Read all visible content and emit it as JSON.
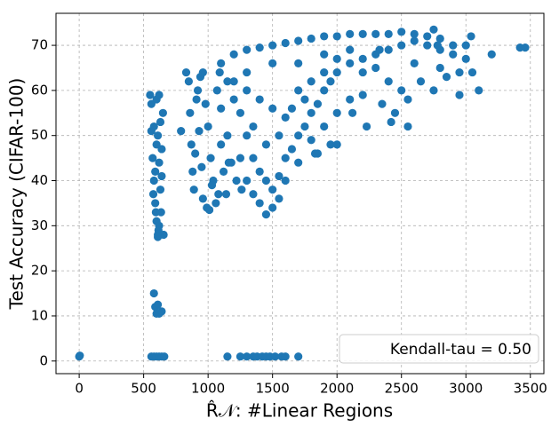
{
  "chart_data": {
    "type": "scatter",
    "xlabel": "R̂𝒩: #Linear Regions",
    "ylabel": "Test Accuracy (CIFAR-100)",
    "annotation": "Kendall-tau = 0.50",
    "legend_loc": "lower right",
    "color": "#1f77b4",
    "grid": true,
    "xlim": [
      -180,
      3605
    ],
    "ylim": [
      -2.8,
      77.1
    ],
    "xticks": [
      0,
      500,
      1000,
      1500,
      2000,
      2500,
      3000,
      3500
    ],
    "yticks": [
      0,
      10,
      20,
      30,
      40,
      50,
      60,
      70
    ],
    "x": [
      0,
      5,
      550,
      560,
      570,
      580,
      590,
      600,
      610,
      620,
      630,
      640,
      650,
      560,
      600,
      620,
      580,
      600,
      620,
      640,
      575,
      595,
      615,
      635,
      590,
      610,
      630,
      655,
      610,
      580,
      590,
      600,
      620,
      640,
      610,
      560,
      580,
      600,
      620,
      640,
      660,
      790,
      830,
      850,
      860,
      870,
      880,
      890,
      900,
      910,
      920,
      940,
      960,
      980,
      1000,
      1020,
      1040,
      1060,
      1080,
      960,
      990,
      1010,
      1030,
      950,
      930,
      1070,
      1090,
      1100,
      1120,
      1140,
      1160,
      1100,
      1150,
      1200,
      1250,
      1300,
      1350,
      1400,
      1450,
      1500,
      1550,
      1600,
      1650,
      1700,
      1750,
      1800,
      1850,
      1900,
      1950,
      2000,
      2100,
      2200,
      2300,
      2400,
      2500,
      2600,
      2700,
      2800,
      2900,
      3000,
      1200,
      1300,
      1400,
      1500,
      1600,
      1700,
      1800,
      1900,
      2000,
      2100,
      2200,
      2300,
      2400,
      2500,
      2600,
      2700,
      2800,
      2900,
      3000,
      1200,
      1300,
      1400,
      1500,
      1600,
      1700,
      1800,
      1900,
      2000,
      2200,
      2400,
      1300,
      1500,
      1700,
      1900,
      2100,
      2300,
      2600,
      2800,
      2500,
      1350,
      1450,
      1550,
      1650,
      1750,
      1250,
      1300,
      1350,
      1400,
      1450,
      1500,
      1550,
      1600,
      1700,
      1800,
      1900,
      2000,
      2100,
      2200,
      2350,
      2450,
      2550,
      2650,
      2750,
      2850,
      2950,
      1850,
      1950,
      1150,
      1100,
      1180,
      1220,
      1260,
      2330,
      2780,
      2950,
      3050,
      3100,
      3200,
      3420,
      3460,
      2750,
      3040,
      2550,
      2420,
      2230,
      2120,
      1830,
      2000,
      1150,
      1250,
      1300,
      1350,
      1380,
      1420,
      1450,
      1480,
      1520,
      1570,
      1600,
      1700
    ],
    "y": [
      1,
      1.2,
      59,
      51,
      45,
      40,
      35,
      31,
      28,
      30,
      38,
      47,
      55,
      57,
      58,
      59,
      52,
      48,
      44,
      41,
      37,
      33,
      29,
      33,
      42,
      50,
      53,
      28,
      27.5,
      15,
      12,
      10.5,
      10.5,
      11,
      12.5,
      1,
      1,
      1,
      1,
      1,
      1,
      51,
      64,
      62,
      55,
      48,
      42,
      38,
      46,
      58,
      60,
      63,
      64,
      57,
      52,
      45,
      40,
      35,
      37,
      36,
      34,
      33.5,
      39,
      43,
      51,
      60,
      64,
      48,
      42,
      37,
      44,
      66,
      62,
      58,
      55,
      50,
      45,
      42,
      40,
      38,
      41,
      45,
      47,
      50,
      52,
      55,
      57,
      60,
      62,
      64,
      66,
      67,
      68,
      69,
      70,
      71,
      70,
      69,
      68,
      67,
      68,
      69,
      69.5,
      70,
      70.5,
      71,
      71.5,
      72,
      72,
      72.5,
      72.5,
      72.5,
      72.5,
      73,
      72.5,
      72,
      71.5,
      70,
      70,
      62,
      60,
      58,
      56,
      54,
      60,
      62,
      64,
      67,
      64,
      62,
      64,
      66,
      66,
      68,
      69,
      65,
      66,
      65,
      60,
      52,
      48,
      50,
      56,
      58,
      45,
      40,
      37,
      35,
      32.5,
      34,
      36,
      40,
      44,
      49,
      52,
      55,
      58,
      59,
      57,
      55,
      58,
      62,
      60,
      63,
      64,
      46,
      48,
      50,
      56,
      44,
      40,
      38,
      69,
      70,
      59,
      64,
      60,
      68,
      69.5,
      69.5,
      73.5,
      72,
      52,
      53,
      52,
      55,
      46,
      48,
      1,
      1,
      1,
      1,
      1,
      1,
      1,
      1,
      1,
      1,
      1,
      1
    ]
  }
}
